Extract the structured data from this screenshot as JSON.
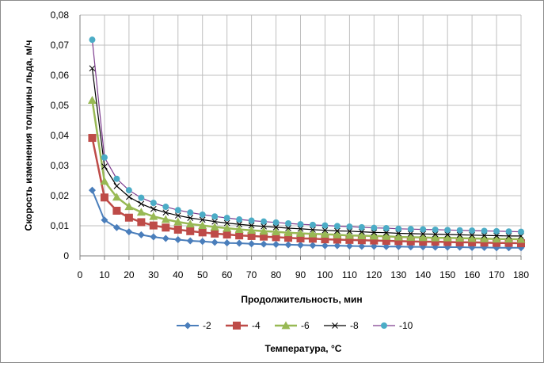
{
  "chart_data": {
    "type": "line",
    "title": "",
    "xlabel": "Продолжительность, мин",
    "ylabel": "Скорость изменения толщины льда, м/ч",
    "legend_title": "Температура, °С",
    "legend_position": "bottom",
    "grid": true,
    "xlim": [
      0,
      180
    ],
    "ylim": [
      0,
      0.08
    ],
    "x_ticks": [
      "0",
      "10",
      "20",
      "30",
      "40",
      "50",
      "60",
      "70",
      "80",
      "90",
      "100",
      "110",
      "120",
      "130",
      "140",
      "150",
      "160",
      "170",
      "180"
    ],
    "y_ticks": [
      "0",
      "0,01",
      "0,02",
      "0,03",
      "0,04",
      "0,05",
      "0,06",
      "0,07",
      "0,08"
    ],
    "x": [
      5,
      10,
      15,
      20,
      25,
      30,
      35,
      40,
      45,
      50,
      55,
      60,
      65,
      70,
      75,
      80,
      85,
      90,
      95,
      100,
      105,
      110,
      115,
      120,
      125,
      130,
      135,
      140,
      145,
      150,
      155,
      160,
      165,
      170,
      175,
      180
    ],
    "series": [
      {
        "name": "-2",
        "color": "#4a7ebb",
        "marker": "diamond",
        "values": [
          0.0218,
          0.0119,
          0.0094,
          0.008,
          0.007,
          0.0063,
          0.0058,
          0.0054,
          0.005,
          0.0048,
          0.0045,
          0.0043,
          0.0042,
          0.004,
          0.0039,
          0.0038,
          0.0037,
          0.0036,
          0.0035,
          0.0034,
          0.0034,
          0.0033,
          0.0032,
          0.0032,
          0.0031,
          0.0031,
          0.003,
          0.003,
          0.0029,
          0.0029,
          0.0029,
          0.0028,
          0.0028,
          0.0027,
          0.0027,
          0.0027
        ]
      },
      {
        "name": "-4",
        "color": "#be4b48",
        "marker": "square",
        "values": [
          0.0392,
          0.0194,
          0.015,
          0.0127,
          0.0112,
          0.0101,
          0.0094,
          0.0087,
          0.0082,
          0.0078,
          0.0074,
          0.0071,
          0.0068,
          0.0066,
          0.0064,
          0.0062,
          0.006,
          0.0058,
          0.0057,
          0.0055,
          0.0054,
          0.0053,
          0.0052,
          0.0051,
          0.005,
          0.0049,
          0.0048,
          0.0047,
          0.0047,
          0.0046,
          0.0045,
          0.0045,
          0.0044,
          0.0043,
          0.0043,
          0.0042
        ]
      },
      {
        "name": "-6",
        "color": "#98b954",
        "marker": "triangle",
        "values": [
          0.0517,
          0.0248,
          0.0195,
          0.0164,
          0.0145,
          0.0131,
          0.0121,
          0.0113,
          0.0106,
          0.0101,
          0.0096,
          0.0092,
          0.0088,
          0.0085,
          0.0082,
          0.008,
          0.0077,
          0.0075,
          0.0073,
          0.0072,
          0.007,
          0.0068,
          0.0067,
          0.0066,
          0.0065,
          0.0063,
          0.0062,
          0.0061,
          0.006,
          0.006,
          0.0059,
          0.0058,
          0.0057,
          0.0056,
          0.0056,
          0.0055
        ]
      },
      {
        "name": "-8",
        "color": "#000000",
        "marker": "x",
        "values": [
          0.0623,
          0.0297,
          0.0232,
          0.0196,
          0.0173,
          0.0156,
          0.0144,
          0.0134,
          0.0126,
          0.012,
          0.0114,
          0.0109,
          0.0105,
          0.0101,
          0.0098,
          0.0095,
          0.0092,
          0.009,
          0.0087,
          0.0085,
          0.0083,
          0.0082,
          0.008,
          0.0078,
          0.0077,
          0.0075,
          0.0074,
          0.0073,
          0.0072,
          0.0071,
          0.007,
          0.0069,
          0.0068,
          0.0067,
          0.0066,
          0.0066
        ]
      },
      {
        "name": "-10",
        "color": "#4bacc6",
        "line_color": "#7d3c8e",
        "marker": "circle",
        "values": [
          0.0718,
          0.0327,
          0.0256,
          0.0218,
          0.0193,
          0.0176,
          0.0163,
          0.0152,
          0.0144,
          0.0137,
          0.0131,
          0.0126,
          0.0121,
          0.0117,
          0.0114,
          0.0111,
          0.0108,
          0.0105,
          0.0103,
          0.0101,
          0.0099,
          0.0097,
          0.0095,
          0.0093,
          0.0092,
          0.009,
          0.0089,
          0.0088,
          0.0087,
          0.0086,
          0.0085,
          0.0084,
          0.0083,
          0.0082,
          0.0081,
          0.008
        ]
      }
    ]
  }
}
